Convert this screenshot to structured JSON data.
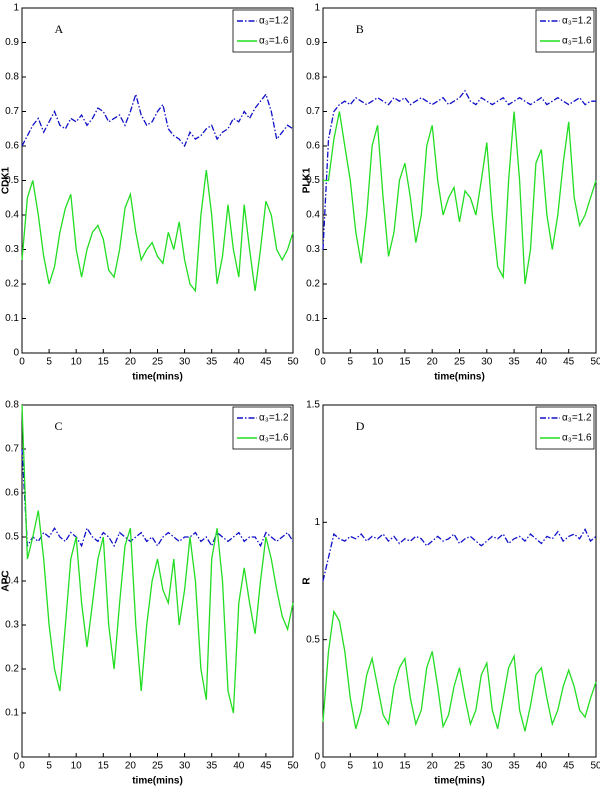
{
  "chart_data": [
    {
      "type": "line",
      "panel_label": "A",
      "ylabel": "CDK1",
      "xlabel": "time(mins)",
      "x": [
        0,
        1,
        2,
        3,
        4,
        5,
        6,
        7,
        8,
        9,
        10,
        11,
        12,
        13,
        14,
        15,
        16,
        17,
        18,
        19,
        20,
        21,
        22,
        23,
        24,
        25,
        26,
        27,
        28,
        29,
        30,
        31,
        32,
        33,
        34,
        35,
        36,
        37,
        38,
        39,
        40,
        41,
        42,
        43,
        44,
        45,
        46,
        47,
        48,
        49,
        50
      ],
      "xlim": [
        0,
        50
      ],
      "xticks": [
        0,
        5,
        10,
        15,
        20,
        25,
        30,
        35,
        40,
        45,
        50
      ],
      "ylim": [
        0,
        1
      ],
      "yticks": [
        0,
        0.1,
        0.2,
        0.3,
        0.4,
        0.5,
        0.6,
        0.7,
        0.8,
        0.9,
        1
      ],
      "legend": "upper right",
      "series": [
        {
          "name": "α₃=1.2",
          "color": "#1010c8",
          "style": "dashdot",
          "values": [
            0.6,
            0.63,
            0.66,
            0.68,
            0.64,
            0.67,
            0.7,
            0.66,
            0.65,
            0.68,
            0.67,
            0.69,
            0.66,
            0.68,
            0.71,
            0.7,
            0.67,
            0.68,
            0.69,
            0.66,
            0.7,
            0.75,
            0.69,
            0.66,
            0.67,
            0.7,
            0.72,
            0.65,
            0.63,
            0.62,
            0.6,
            0.64,
            0.62,
            0.63,
            0.65,
            0.66,
            0.62,
            0.64,
            0.65,
            0.68,
            0.67,
            0.7,
            0.68,
            0.71,
            0.73,
            0.75,
            0.7,
            0.62,
            0.64,
            0.66,
            0.65
          ]
        },
        {
          "name": "α₃=1.6",
          "color": "#22dd22",
          "style": "solid",
          "values": [
            0.27,
            0.45,
            0.5,
            0.4,
            0.28,
            0.2,
            0.25,
            0.35,
            0.42,
            0.46,
            0.3,
            0.22,
            0.3,
            0.35,
            0.37,
            0.33,
            0.24,
            0.22,
            0.3,
            0.42,
            0.46,
            0.35,
            0.27,
            0.3,
            0.32,
            0.28,
            0.26,
            0.35,
            0.3,
            0.38,
            0.27,
            0.2,
            0.18,
            0.4,
            0.53,
            0.4,
            0.2,
            0.28,
            0.43,
            0.3,
            0.22,
            0.43,
            0.3,
            0.18,
            0.3,
            0.44,
            0.4,
            0.3,
            0.27,
            0.3,
            0.35
          ]
        }
      ]
    },
    {
      "type": "line",
      "panel_label": "B",
      "ylabel": "PLK1",
      "xlabel": "time(mins)",
      "x": [
        0,
        1,
        2,
        3,
        4,
        5,
        6,
        7,
        8,
        9,
        10,
        11,
        12,
        13,
        14,
        15,
        16,
        17,
        18,
        19,
        20,
        21,
        22,
        23,
        24,
        25,
        26,
        27,
        28,
        29,
        30,
        31,
        32,
        33,
        34,
        35,
        36,
        37,
        38,
        39,
        40,
        41,
        42,
        43,
        44,
        45,
        46,
        47,
        48,
        49,
        50
      ],
      "xlim": [
        0,
        50
      ],
      "xticks": [
        0,
        5,
        10,
        15,
        20,
        25,
        30,
        35,
        40,
        45,
        50
      ],
      "ylim": [
        0,
        1
      ],
      "yticks": [
        0,
        0.1,
        0.2,
        0.3,
        0.4,
        0.5,
        0.6,
        0.7,
        0.8,
        0.9,
        1
      ],
      "legend": "upper right",
      "series": [
        {
          "name": "α₃=1.2",
          "color": "#1010c8",
          "style": "dashdot",
          "values": [
            0.3,
            0.62,
            0.7,
            0.72,
            0.73,
            0.72,
            0.74,
            0.73,
            0.72,
            0.73,
            0.74,
            0.73,
            0.72,
            0.74,
            0.73,
            0.74,
            0.72,
            0.73,
            0.74,
            0.73,
            0.72,
            0.73,
            0.74,
            0.72,
            0.73,
            0.74,
            0.76,
            0.73,
            0.72,
            0.74,
            0.73,
            0.72,
            0.73,
            0.74,
            0.72,
            0.73,
            0.74,
            0.73,
            0.72,
            0.73,
            0.74,
            0.72,
            0.73,
            0.74,
            0.73,
            0.72,
            0.73,
            0.74,
            0.72,
            0.73,
            0.73
          ]
        },
        {
          "name": "α₃=1.6",
          "color": "#22dd22",
          "style": "solid",
          "values": [
            0.5,
            0.5,
            0.62,
            0.7,
            0.6,
            0.5,
            0.35,
            0.26,
            0.4,
            0.6,
            0.66,
            0.45,
            0.28,
            0.35,
            0.5,
            0.55,
            0.45,
            0.32,
            0.4,
            0.6,
            0.66,
            0.5,
            0.4,
            0.45,
            0.48,
            0.38,
            0.47,
            0.45,
            0.4,
            0.5,
            0.61,
            0.4,
            0.25,
            0.22,
            0.5,
            0.7,
            0.5,
            0.2,
            0.3,
            0.55,
            0.59,
            0.4,
            0.3,
            0.4,
            0.55,
            0.67,
            0.45,
            0.37,
            0.4,
            0.45,
            0.5
          ]
        }
      ]
    },
    {
      "type": "line",
      "panel_label": "C",
      "ylabel": "APC",
      "xlabel": "time(mins)",
      "x": [
        0,
        1,
        2,
        3,
        4,
        5,
        6,
        7,
        8,
        9,
        10,
        11,
        12,
        13,
        14,
        15,
        16,
        17,
        18,
        19,
        20,
        21,
        22,
        23,
        24,
        25,
        26,
        27,
        28,
        29,
        30,
        31,
        32,
        33,
        34,
        35,
        36,
        37,
        38,
        39,
        40,
        41,
        42,
        43,
        44,
        45,
        46,
        47,
        48,
        49,
        50
      ],
      "xlim": [
        0,
        50
      ],
      "xticks": [
        0,
        5,
        10,
        15,
        20,
        25,
        30,
        35,
        40,
        45,
        50
      ],
      "ylim": [
        0,
        0.8
      ],
      "yticks": [
        0,
        0.1,
        0.2,
        0.3,
        0.4,
        0.5,
        0.6,
        0.7,
        0.8
      ],
      "legend": "upper right",
      "series": [
        {
          "name": "α₃=1.2",
          "color": "#1010c8",
          "style": "dashdot",
          "values": [
            0.7,
            0.48,
            0.5,
            0.49,
            0.51,
            0.5,
            0.52,
            0.5,
            0.49,
            0.51,
            0.5,
            0.48,
            0.52,
            0.5,
            0.49,
            0.51,
            0.5,
            0.48,
            0.51,
            0.5,
            0.49,
            0.5,
            0.51,
            0.49,
            0.5,
            0.48,
            0.5,
            0.51,
            0.5,
            0.49,
            0.5,
            0.5,
            0.51,
            0.49,
            0.5,
            0.48,
            0.51,
            0.5,
            0.49,
            0.5,
            0.51,
            0.49,
            0.5,
            0.5,
            0.48,
            0.51,
            0.5,
            0.49,
            0.5,
            0.51,
            0.49
          ]
        },
        {
          "name": "α₃=1.6",
          "color": "#22dd22",
          "style": "solid",
          "values": [
            0.8,
            0.45,
            0.5,
            0.56,
            0.45,
            0.3,
            0.2,
            0.15,
            0.3,
            0.45,
            0.5,
            0.35,
            0.25,
            0.35,
            0.45,
            0.5,
            0.3,
            0.2,
            0.35,
            0.48,
            0.52,
            0.3,
            0.15,
            0.3,
            0.4,
            0.45,
            0.38,
            0.35,
            0.45,
            0.3,
            0.38,
            0.5,
            0.4,
            0.2,
            0.13,
            0.45,
            0.52,
            0.4,
            0.15,
            0.1,
            0.35,
            0.43,
            0.35,
            0.28,
            0.4,
            0.5,
            0.45,
            0.38,
            0.32,
            0.29,
            0.35
          ]
        }
      ]
    },
    {
      "type": "line",
      "panel_label": "D",
      "ylabel": "R",
      "xlabel": "time(mins)",
      "x": [
        0,
        1,
        2,
        3,
        4,
        5,
        6,
        7,
        8,
        9,
        10,
        11,
        12,
        13,
        14,
        15,
        16,
        17,
        18,
        19,
        20,
        21,
        22,
        23,
        24,
        25,
        26,
        27,
        28,
        29,
        30,
        31,
        32,
        33,
        34,
        35,
        36,
        37,
        38,
        39,
        40,
        41,
        42,
        43,
        44,
        45,
        46,
        47,
        48,
        49,
        50
      ],
      "xlim": [
        0,
        50
      ],
      "xticks": [
        0,
        5,
        10,
        15,
        20,
        25,
        30,
        35,
        40,
        45,
        50
      ],
      "ylim": [
        0,
        1.5
      ],
      "yticks": [
        0,
        0.5,
        1,
        1.5
      ],
      "legend": "upper right",
      "series": [
        {
          "name": "α₃=1.2",
          "color": "#1010c8",
          "style": "dashdot",
          "values": [
            0.75,
            0.85,
            0.95,
            0.93,
            0.92,
            0.94,
            0.93,
            0.95,
            0.92,
            0.94,
            0.93,
            0.95,
            0.92,
            0.94,
            0.91,
            0.93,
            0.92,
            0.94,
            0.93,
            0.9,
            0.92,
            0.94,
            0.92,
            0.93,
            0.95,
            0.91,
            0.93,
            0.94,
            0.92,
            0.9,
            0.92,
            0.94,
            0.93,
            0.95,
            0.91,
            0.93,
            0.94,
            0.92,
            0.95,
            0.93,
            0.91,
            0.94,
            0.93,
            0.96,
            0.92,
            0.94,
            0.95,
            0.93,
            0.97,
            0.92,
            0.94
          ]
        },
        {
          "name": "α₃=1.6",
          "color": "#22dd22",
          "style": "solid",
          "values": [
            0.15,
            0.45,
            0.62,
            0.58,
            0.45,
            0.25,
            0.12,
            0.2,
            0.35,
            0.42,
            0.3,
            0.18,
            0.14,
            0.3,
            0.38,
            0.42,
            0.25,
            0.14,
            0.2,
            0.38,
            0.45,
            0.3,
            0.13,
            0.18,
            0.3,
            0.38,
            0.25,
            0.14,
            0.2,
            0.35,
            0.4,
            0.2,
            0.12,
            0.25,
            0.38,
            0.43,
            0.2,
            0.11,
            0.22,
            0.35,
            0.38,
            0.25,
            0.14,
            0.2,
            0.3,
            0.37,
            0.3,
            0.2,
            0.17,
            0.25,
            0.32
          ]
        }
      ]
    }
  ]
}
